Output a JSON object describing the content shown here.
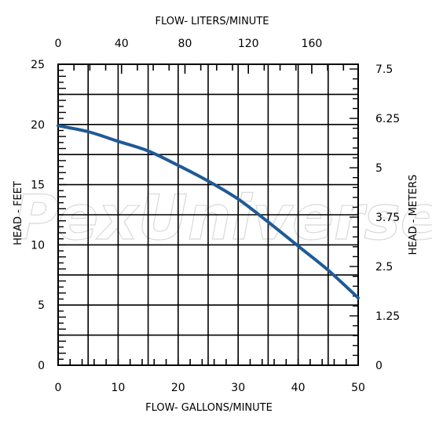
{
  "chart_data": {
    "type": "line",
    "x_bottom_label": "FLOW-  GALLONS/MINUTE",
    "x_top_label": "FLOW-  LITERS/MINUTE",
    "y_left_label": "HEAD  -  FEET",
    "y_right_label": "HEAD  -  METERS",
    "x_bottom_range": [
      0,
      50
    ],
    "y_left_range": [
      0,
      25
    ],
    "x_bottom_ticks": [
      "0",
      "10",
      "20",
      "30",
      "40",
      "50"
    ],
    "x_top_ticks": [
      "0",
      "40",
      "80",
      "120",
      "160"
    ],
    "y_left_ticks": [
      "0",
      "5",
      "10",
      "15",
      "20",
      "25"
    ],
    "y_right_ticks": [
      "0",
      "1.25",
      "2.5",
      "3.75",
      "5",
      "6.25",
      "7.5"
    ],
    "grid": true,
    "series": [
      {
        "x": [
          0,
          5,
          10,
          15,
          20,
          25,
          30,
          35,
          40,
          45,
          50
        ],
        "y": [
          19.9,
          19.4,
          18.6,
          17.8,
          16.6,
          15.3,
          13.8,
          11.9,
          9.9,
          7.9,
          5.6
        ],
        "color": "#1f5a96"
      }
    ]
  },
  "watermark": "PexUniverse"
}
